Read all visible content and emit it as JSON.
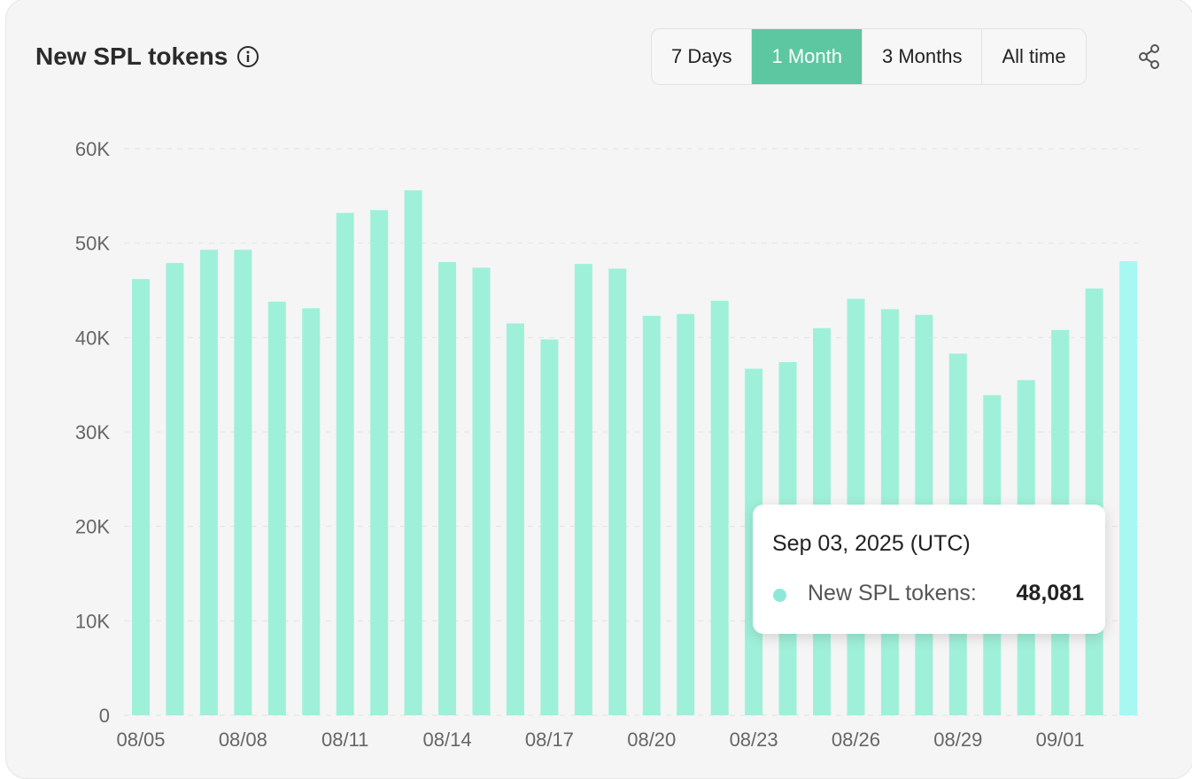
{
  "header": {
    "title": "New SPL tokens",
    "tabs": [
      {
        "label": "7 Days",
        "active": false
      },
      {
        "label": "1 Month",
        "active": true
      },
      {
        "label": "3 Months",
        "active": false
      },
      {
        "label": "All time",
        "active": false
      }
    ],
    "info_icon": "info-icon",
    "share_icon": "share-icon"
  },
  "colors": {
    "bar": "#9ff0d9",
    "bar_highlight": "#a7f7f2",
    "active_tab": "#5cc7a0",
    "tooltip_dot": "#8ee8d8"
  },
  "tooltip": {
    "date": "Sep 03, 2025 (UTC)",
    "series_label": "New SPL tokens:",
    "value": "48,081"
  },
  "chart_data": {
    "type": "bar",
    "title": "New SPL tokens",
    "ylim": [
      0,
      60000
    ],
    "yticks": [
      0,
      10000,
      20000,
      30000,
      40000,
      50000,
      60000
    ],
    "ytick_labels": [
      "0",
      "10K",
      "20K",
      "30K",
      "40K",
      "50K",
      "60K"
    ],
    "grid": true,
    "categories": [
      "08/05",
      "08/06",
      "08/07",
      "08/08",
      "08/09",
      "08/10",
      "08/11",
      "08/12",
      "08/13",
      "08/14",
      "08/15",
      "08/16",
      "08/17",
      "08/18",
      "08/19",
      "08/20",
      "08/21",
      "08/22",
      "08/23",
      "08/24",
      "08/25",
      "08/26",
      "08/27",
      "08/28",
      "08/29",
      "08/30",
      "08/31",
      "09/01",
      "09/02",
      "09/03"
    ],
    "xtick_labels": [
      "08/05",
      "08/08",
      "08/11",
      "08/14",
      "08/17",
      "08/20",
      "08/23",
      "08/26",
      "08/29",
      "09/01"
    ],
    "series": [
      {
        "name": "New SPL tokens",
        "values": [
          46200,
          47900,
          49300,
          49300,
          43800,
          43100,
          53200,
          53500,
          55600,
          48000,
          47400,
          41500,
          39800,
          47800,
          47300,
          42300,
          42500,
          43900,
          36700,
          37400,
          41000,
          44100,
          43000,
          42400,
          38300,
          33900,
          35500,
          40800,
          45200,
          48081
        ]
      }
    ],
    "highlighted_index": 29
  }
}
